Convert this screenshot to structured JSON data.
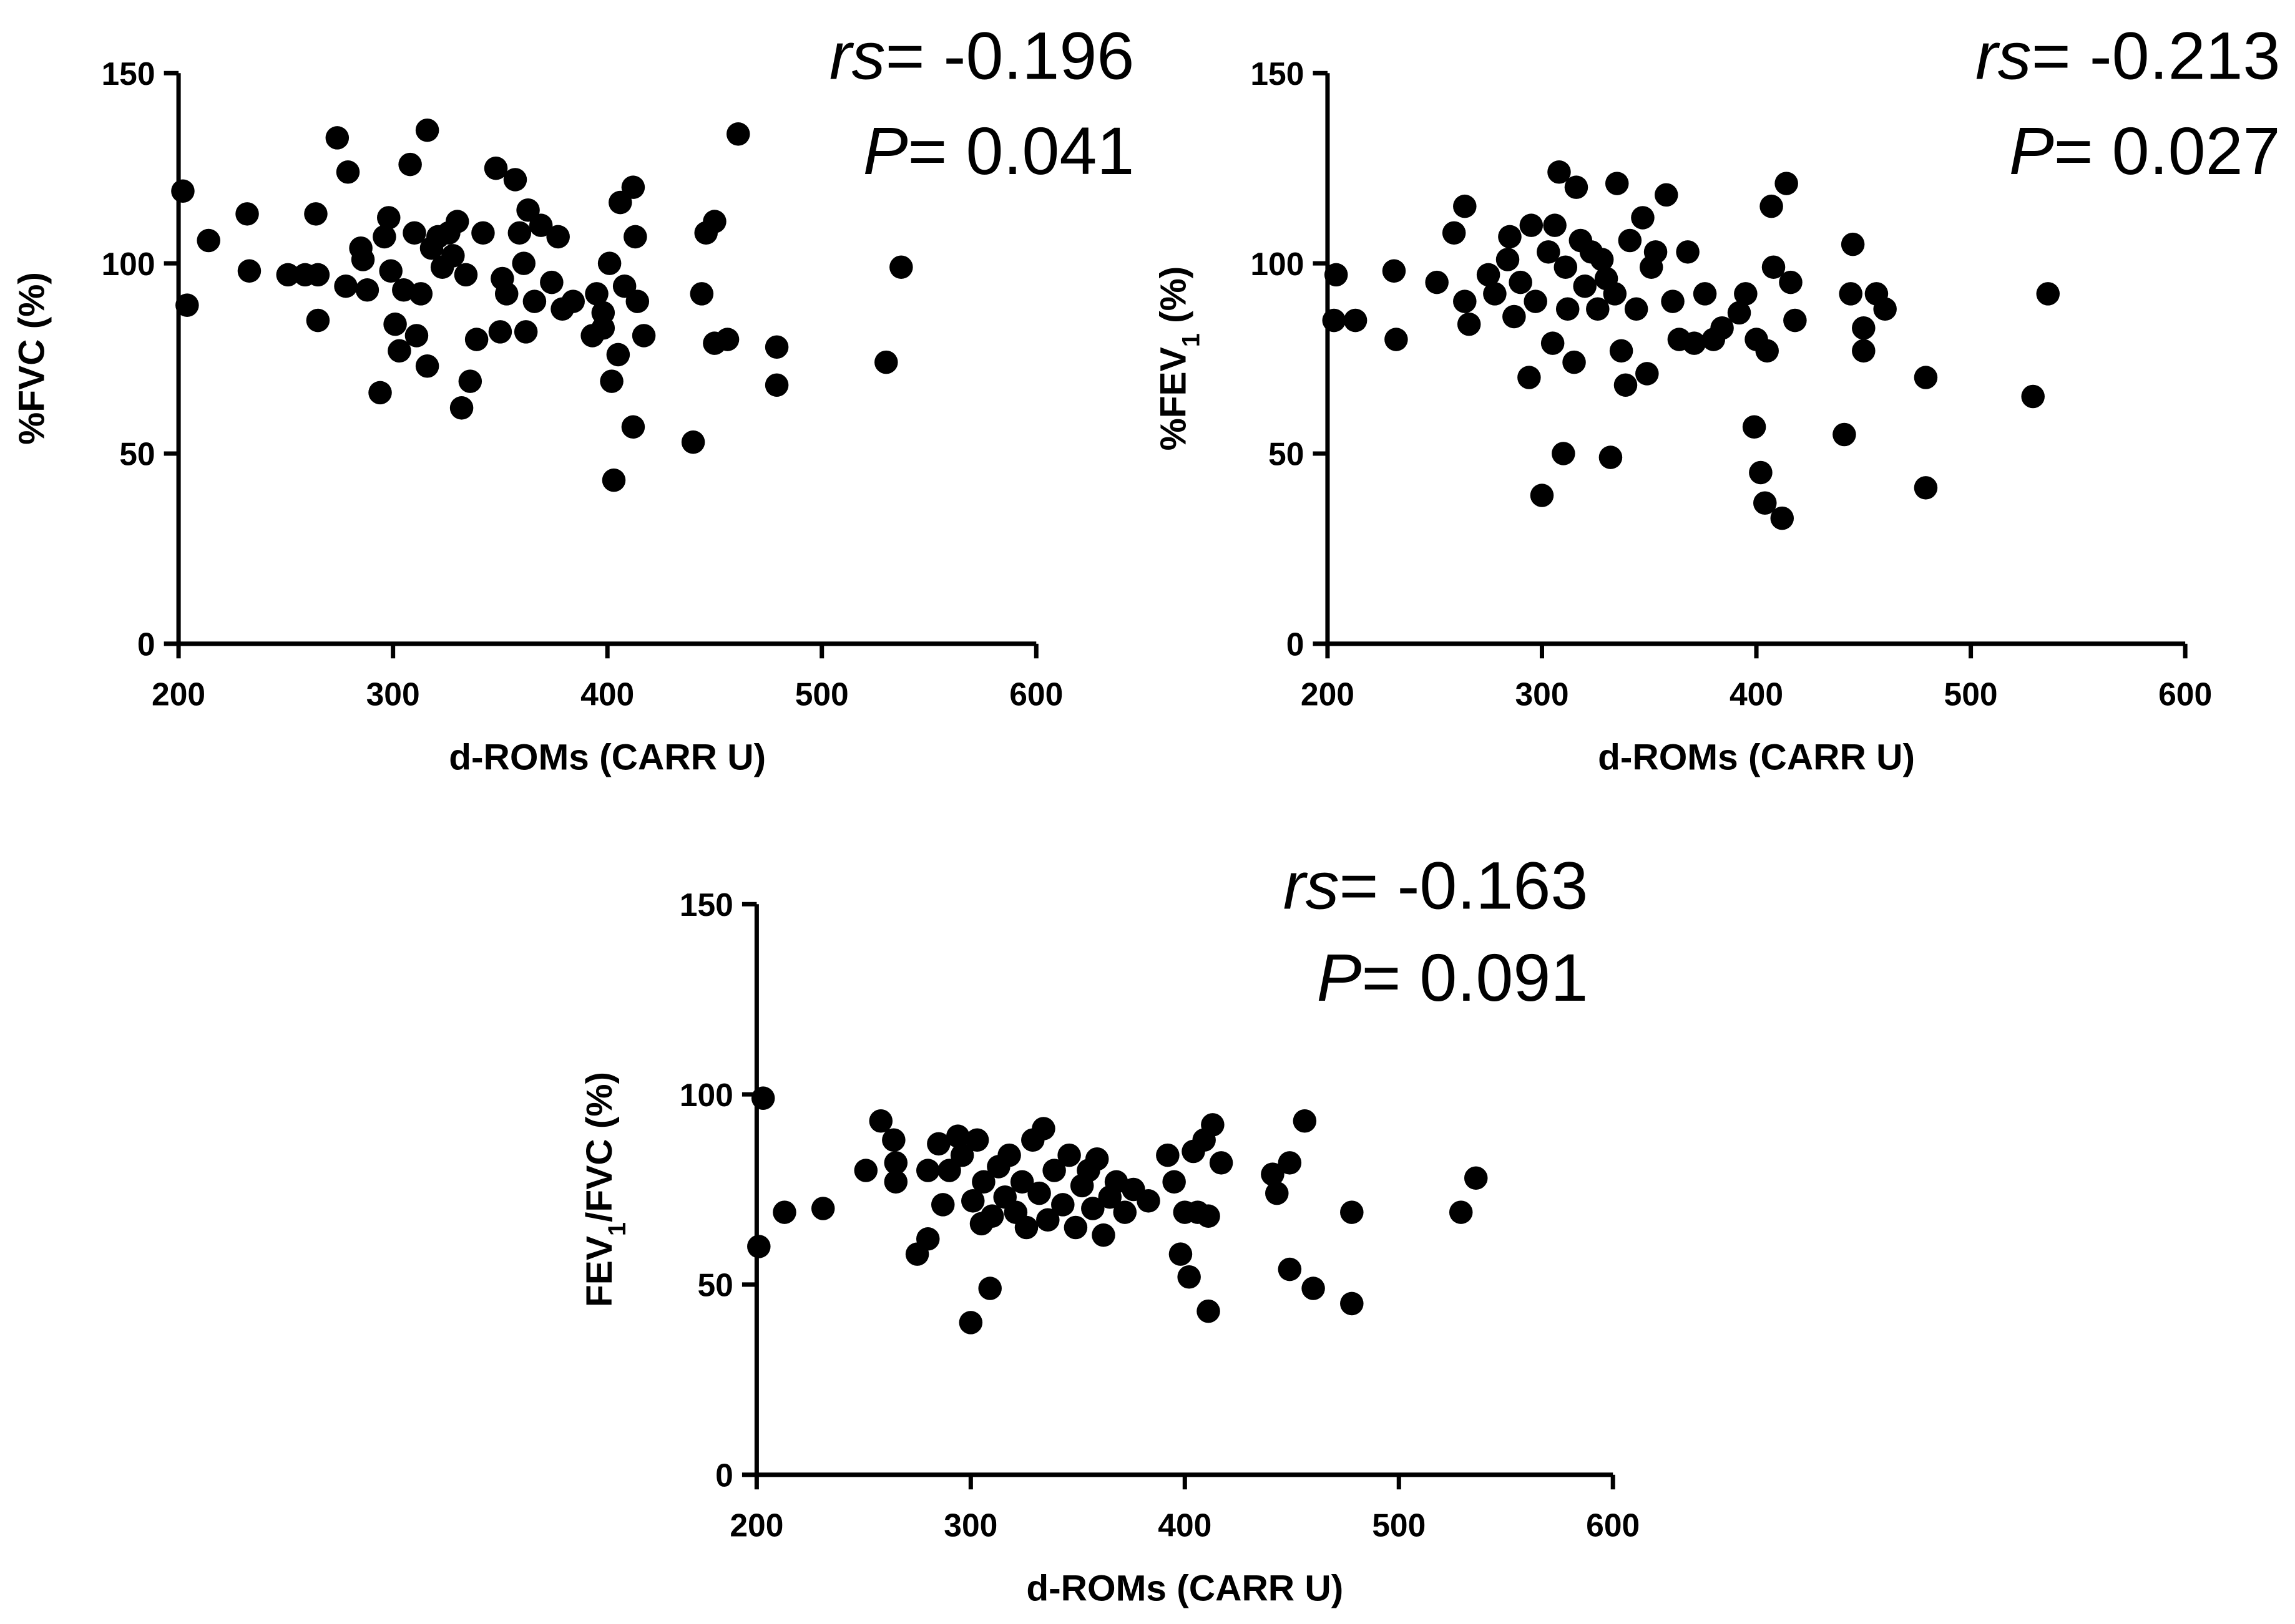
{
  "chart_data": [
    {
      "type": "scatter",
      "color": "#000000",
      "x_label": "d-ROMs (CARR U)",
      "y_label_parts": [
        {
          "text": "%FVC (%)"
        }
      ],
      "annotations": [
        {
          "symbol": "rs",
          "text": "= -0.196"
        },
        {
          "symbol": "P",
          "text": "= 0.041"
        }
      ],
      "xlim": [
        200,
        600
      ],
      "xticks": [
        200,
        300,
        400,
        500,
        600
      ],
      "ylim": [
        0,
        150
      ],
      "yticks": [
        0,
        50,
        100,
        150
      ],
      "x": [
        202,
        204,
        214,
        232,
        233,
        251,
        259,
        265,
        264,
        265,
        274,
        279,
        278,
        285,
        286,
        288,
        294,
        296,
        298,
        299,
        301,
        303,
        305,
        308,
        310,
        311,
        313,
        316,
        316,
        318,
        321,
        323,
        326,
        328,
        330,
        332,
        334,
        336,
        339,
        342,
        348,
        350,
        351,
        353,
        357,
        359,
        361,
        362,
        363,
        366,
        369,
        374,
        377,
        379,
        384,
        393,
        395,
        398,
        398,
        401,
        402,
        403,
        405,
        406,
        408,
        412,
        412,
        413,
        414,
        417,
        440,
        444,
        446,
        450,
        450,
        456,
        461,
        479,
        479,
        530,
        537
      ],
      "values": [
        119,
        89,
        106,
        113,
        98,
        97,
        97,
        97,
        113,
        85,
        133,
        124,
        94,
        104,
        101,
        93,
        66,
        107,
        112,
        98,
        84,
        77,
        93,
        126,
        108,
        81,
        92,
        135,
        73,
        104,
        107,
        99,
        108,
        102,
        111,
        62,
        97,
        69,
        80,
        108,
        125,
        82,
        96,
        92,
        122,
        108,
        100,
        82,
        114,
        90,
        110,
        95,
        107,
        88,
        90,
        81,
        92,
        87,
        83,
        100,
        69,
        43,
        76,
        116,
        94,
        120,
        57,
        107,
        90,
        81,
        53,
        92,
        108,
        111,
        79,
        80,
        134,
        78,
        68,
        74,
        99
      ]
    },
    {
      "type": "scatter",
      "color": "#000000",
      "x_label": "d-ROMs (CARR U)",
      "y_label_parts": [
        {
          "text": "%FEV"
        },
        {
          "text": "1",
          "sub": true
        },
        {
          "text": " (%)"
        }
      ],
      "annotations": [
        {
          "symbol": "rs",
          "text": "= -0.213"
        },
        {
          "symbol": "P",
          "text": "= 0.027"
        }
      ],
      "xlim": [
        200,
        600
      ],
      "xticks": [
        200,
        300,
        400,
        500,
        600
      ],
      "ylim": [
        0,
        150
      ],
      "yticks": [
        0,
        50,
        100,
        150
      ],
      "x": [
        203,
        204,
        213,
        231,
        232,
        251,
        259,
        264,
        264,
        266,
        275,
        278,
        284,
        285,
        287,
        290,
        294,
        295,
        297,
        300,
        303,
        305,
        306,
        308,
        310,
        311,
        312,
        315,
        316,
        318,
        320,
        323,
        326,
        328,
        330,
        332,
        334,
        335,
        337,
        339,
        341,
        344,
        347,
        349,
        351,
        353,
        358,
        361,
        364,
        368,
        371,
        376,
        380,
        384,
        392,
        395,
        399,
        400,
        402,
        404,
        405,
        407,
        408,
        412,
        414,
        416,
        418,
        441,
        444,
        445,
        450,
        450,
        456,
        460,
        479,
        479,
        529,
        536
      ],
      "values": [
        85,
        97,
        85,
        98,
        80,
        95,
        108,
        115,
        90,
        84,
        97,
        92,
        101,
        107,
        86,
        95,
        70,
        110,
        90,
        39,
        103,
        79,
        110,
        124,
        50,
        99,
        88,
        74,
        120,
        106,
        94,
        103,
        88,
        101,
        96,
        49,
        92,
        121,
        77,
        68,
        106,
        88,
        112,
        71,
        99,
        103,
        118,
        90,
        80,
        103,
        79,
        92,
        80,
        83,
        87,
        92,
        57,
        80,
        45,
        37,
        77,
        115,
        99,
        33,
        121,
        95,
        85,
        55,
        92,
        105,
        83,
        77,
        92,
        88,
        70,
        41,
        65,
        92
      ]
    },
    {
      "type": "scatter",
      "color": "#000000",
      "x_label": "d-ROMs (CARR U)",
      "y_label_parts": [
        {
          "text": "FEV"
        },
        {
          "text": "1",
          "sub": true
        },
        {
          "text": "/FVC (%)"
        }
      ],
      "annotations": [
        {
          "symbol": "rs",
          "text": "= -0.163"
        },
        {
          "symbol": "P",
          "text": "= 0.091"
        }
      ],
      "xlim": [
        200,
        600
      ],
      "xticks": [
        200,
        300,
        400,
        500,
        600
      ],
      "ylim": [
        0,
        150
      ],
      "yticks": [
        0,
        50,
        100,
        150
      ],
      "x": [
        201,
        203,
        213,
        231,
        251,
        258,
        264,
        265,
        265,
        275,
        280,
        280,
        285,
        287,
        290,
        294,
        296,
        300,
        301,
        303,
        305,
        306,
        309,
        310,
        313,
        316,
        318,
        321,
        324,
        326,
        329,
        332,
        334,
        336,
        339,
        343,
        346,
        349,
        352,
        355,
        357,
        359,
        362,
        365,
        368,
        372,
        376,
        383,
        392,
        395,
        398,
        400,
        402,
        404,
        406,
        409,
        411,
        411,
        413,
        417,
        441,
        443,
        449,
        449,
        456,
        460,
        478,
        478,
        529,
        536
      ],
      "values": [
        60,
        99,
        69,
        70,
        80,
        93,
        88,
        82,
        77,
        58,
        62,
        80,
        87,
        71,
        80,
        89,
        84,
        40,
        72,
        88,
        66,
        77,
        49,
        68,
        81,
        73,
        84,
        69,
        77,
        65,
        88,
        74,
        91,
        67,
        80,
        71,
        84,
        65,
        76,
        80,
        70,
        83,
        63,
        73,
        77,
        69,
        75,
        72,
        84,
        77,
        58,
        69,
        52,
        85,
        69,
        88,
        43,
        68,
        92,
        82,
        79,
        74,
        82,
        54,
        93,
        49,
        45,
        69,
        69,
        78
      ]
    }
  ]
}
